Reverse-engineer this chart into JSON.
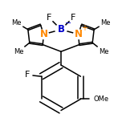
{
  "bg_color": "#ffffff",
  "bond_color": "#000000",
  "N_color": "#ff8800",
  "B_color": "#0000cc",
  "lw": 1.1,
  "dbo": 0.022,
  "figsize": [
    1.52,
    1.52
  ],
  "dpi": 100,
  "xlim": [
    -1.7,
    1.7
  ],
  "ylim": [
    -2.1,
    1.7
  ]
}
